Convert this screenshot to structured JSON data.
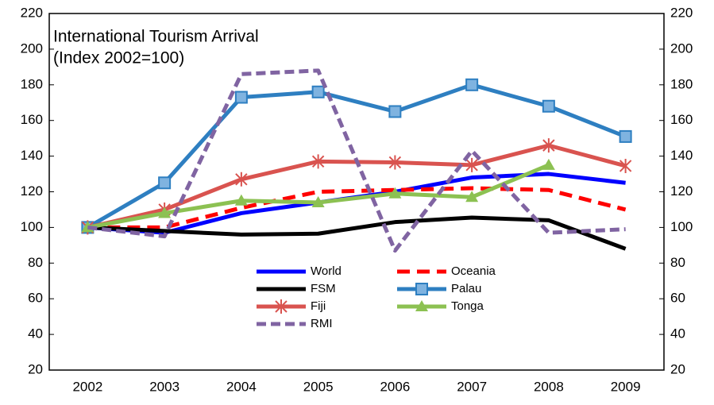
{
  "chart_data": {
    "type": "line",
    "title_lines": [
      "International Tourism Arrival",
      "(Index 2002=100)"
    ],
    "categories": [
      "2002",
      "2003",
      "2004",
      "2005",
      "2006",
      "2007",
      "2008",
      "2009"
    ],
    "series": [
      {
        "name": "World",
        "color": "#0000ff",
        "dash": "solid",
        "marker": "none",
        "values": [
          100,
          97,
          108,
          114,
          120,
          128,
          130,
          125
        ]
      },
      {
        "name": "Oceania",
        "color": "#ff0000",
        "dash": "dashed",
        "marker": "none",
        "values": [
          100,
          100,
          111,
          120,
          121,
          122,
          121,
          110
        ]
      },
      {
        "name": "FSM",
        "color": "#000000",
        "dash": "solid",
        "marker": "none",
        "values": [
          100,
          98,
          96,
          96.5,
          103,
          105.5,
          104,
          88
        ]
      },
      {
        "name": "Palau",
        "color": "#2e7fc1",
        "dash": "solid",
        "marker": "square",
        "values": [
          100,
          125,
          173,
          176,
          165,
          180,
          168,
          151
        ]
      },
      {
        "name": "Fiji",
        "color": "#d9534f",
        "dash": "solid",
        "marker": "asterisk",
        "values": [
          100,
          110,
          127,
          137,
          136.5,
          135,
          146,
          134.5
        ]
      },
      {
        "name": "Tonga",
        "color": "#8cc152",
        "dash": "solid",
        "marker": "triangle",
        "values": [
          100,
          108,
          115,
          114,
          119,
          117,
          135,
          null
        ]
      },
      {
        "name": "RMI",
        "color": "#8064a2",
        "dash": "dotted",
        "marker": "none",
        "values": [
          100,
          95,
          186,
          188,
          87,
          143,
          97,
          99
        ]
      }
    ],
    "ylim": [
      20,
      220
    ],
    "yticks": [
      20,
      40,
      60,
      80,
      100,
      120,
      140,
      160,
      180,
      200,
      220
    ],
    "y2lim": [
      20,
      220
    ],
    "y2ticks": [
      20,
      40,
      60,
      80,
      100,
      120,
      140,
      160,
      180,
      200,
      220
    ],
    "grid": false
  }
}
